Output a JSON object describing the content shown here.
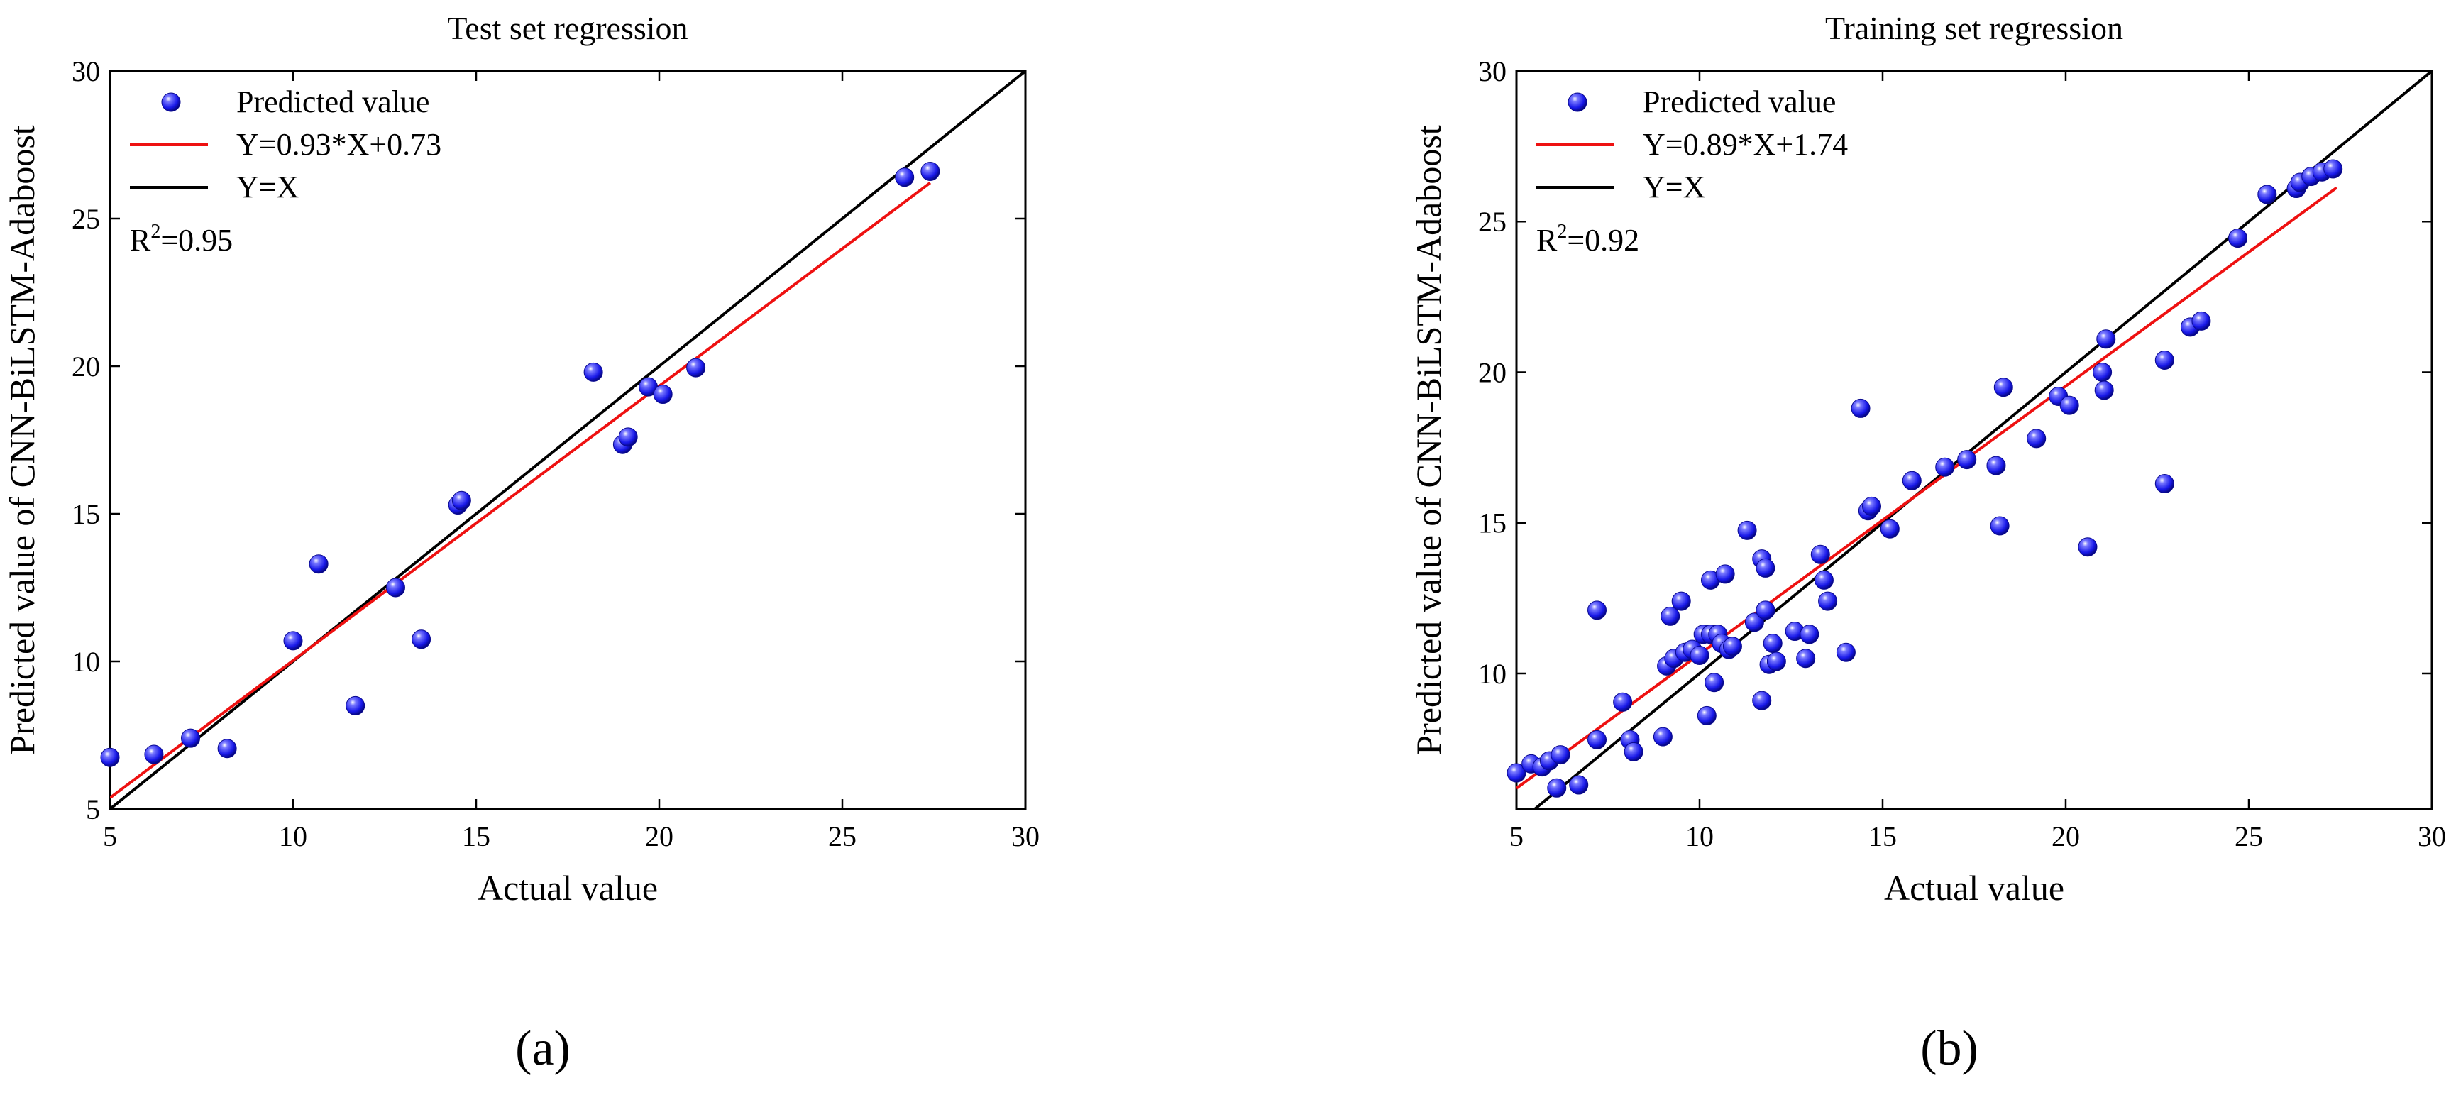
{
  "chart_data": [
    {
      "type": "scatter",
      "panel_label": "(a)",
      "title": "Test set regression",
      "xlabel": "Actual value",
      "ylabel": "Predicted value of CNN-BiLSTM-Adaboost",
      "xlim": [
        5,
        30
      ],
      "ylim": [
        5,
        30
      ],
      "xticks": [
        5,
        10,
        15,
        20,
        25,
        30
      ],
      "yticks": [
        5,
        10,
        15,
        20,
        25,
        30
      ],
      "grid": false,
      "legend_position": "top-left",
      "legend": {
        "points": "Predicted value",
        "fit": "Y=0.93*X+0.73",
        "identity": "Y=X"
      },
      "r2": {
        "prefix": "R",
        "sup": "2",
        "value": "=0.95"
      },
      "fit_line": {
        "slope": 0.93,
        "intercept": 0.73,
        "x_range": [
          5,
          27.4
        ]
      },
      "identity_line": {
        "x_range": [
          5,
          30
        ]
      },
      "colors": {
        "points": "#1a1aee",
        "fit": "#ee1111",
        "identity": "#000000"
      },
      "points": [
        [
          5.0,
          6.75
        ],
        [
          6.2,
          6.85
        ],
        [
          7.2,
          7.4
        ],
        [
          8.2,
          7.05
        ],
        [
          10.0,
          10.7
        ],
        [
          10.7,
          13.3
        ],
        [
          11.7,
          8.5
        ],
        [
          12.8,
          12.5
        ],
        [
          13.5,
          10.75
        ],
        [
          14.5,
          15.3
        ],
        [
          14.6,
          15.45
        ],
        [
          18.2,
          19.8
        ],
        [
          19.0,
          17.35
        ],
        [
          19.15,
          17.6
        ],
        [
          19.7,
          19.3
        ],
        [
          20.1,
          19.05
        ],
        [
          21.0,
          19.95
        ],
        [
          26.7,
          26.4
        ],
        [
          27.4,
          26.6
        ]
      ]
    },
    {
      "type": "scatter",
      "panel_label": "(b)",
      "title": "Training set regression",
      "xlabel": "Actual value",
      "ylabel": "Predicted value of CNN-BiLSTM-Adaboost",
      "xlim": [
        5,
        30
      ],
      "ylim": [
        5.5,
        30
      ],
      "xticks": [
        5,
        10,
        15,
        20,
        25,
        30
      ],
      "yticks": [
        10,
        15,
        20,
        25,
        30
      ],
      "grid": false,
      "legend_position": "top-left",
      "legend": {
        "points": "Predicted value",
        "fit": "Y=0.89*X+1.74",
        "identity": "Y=X"
      },
      "r2": {
        "prefix": "R",
        "sup": "2",
        "value": "=0.92"
      },
      "fit_line": {
        "slope": 0.89,
        "intercept": 1.74,
        "x_range": [
          5,
          27.4
        ]
      },
      "identity_line": {
        "x_range": [
          5.5,
          30
        ]
      },
      "colors": {
        "points": "#1a1aee",
        "fit": "#ee1111",
        "identity": "#000000"
      },
      "points": [
        [
          5.0,
          6.7
        ],
        [
          5.4,
          7.0
        ],
        [
          5.7,
          6.9
        ],
        [
          5.9,
          7.1
        ],
        [
          6.2,
          7.3
        ],
        [
          6.1,
          6.2
        ],
        [
          6.7,
          6.3
        ],
        [
          7.2,
          12.1
        ],
        [
          7.2,
          7.8
        ],
        [
          7.9,
          9.05
        ],
        [
          8.1,
          7.8
        ],
        [
          8.2,
          7.4
        ],
        [
          9.0,
          7.9
        ],
        [
          9.1,
          10.25
        ],
        [
          9.2,
          11.9
        ],
        [
          9.3,
          10.5
        ],
        [
          9.5,
          12.4
        ],
        [
          9.6,
          10.7
        ],
        [
          9.8,
          10.8
        ],
        [
          10.0,
          10.6
        ],
        [
          10.1,
          11.3
        ],
        [
          10.3,
          11.3
        ],
        [
          10.3,
          13.1
        ],
        [
          10.2,
          8.6
        ],
        [
          10.4,
          9.7
        ],
        [
          10.5,
          11.3
        ],
        [
          10.6,
          11.0
        ],
        [
          10.7,
          13.3
        ],
        [
          10.8,
          10.8
        ],
        [
          10.9,
          10.9
        ],
        [
          11.3,
          14.75
        ],
        [
          11.5,
          11.7
        ],
        [
          11.7,
          13.8
        ],
        [
          11.8,
          13.5
        ],
        [
          11.7,
          9.1
        ],
        [
          11.8,
          12.1
        ],
        [
          11.9,
          10.3
        ],
        [
          12.0,
          11.0
        ],
        [
          12.1,
          10.4
        ],
        [
          12.6,
          11.4
        ],
        [
          12.9,
          10.5
        ],
        [
          13.0,
          11.3
        ],
        [
          13.3,
          13.95
        ],
        [
          13.4,
          13.1
        ],
        [
          13.5,
          12.4
        ],
        [
          14.0,
          10.7
        ],
        [
          14.4,
          18.8
        ],
        [
          14.6,
          15.4
        ],
        [
          14.7,
          15.55
        ],
        [
          15.2,
          14.8
        ],
        [
          15.8,
          16.4
        ],
        [
          16.7,
          16.85
        ],
        [
          17.3,
          17.1
        ],
        [
          18.1,
          16.9
        ],
        [
          18.2,
          14.9
        ],
        [
          18.3,
          19.5
        ],
        [
          19.2,
          17.8
        ],
        [
          19.8,
          19.2
        ],
        [
          20.1,
          18.9
        ],
        [
          20.6,
          14.2
        ],
        [
          21.0,
          20.0
        ],
        [
          21.05,
          19.4
        ],
        [
          21.1,
          21.1
        ],
        [
          22.7,
          20.4
        ],
        [
          22.7,
          16.3
        ],
        [
          23.4,
          21.5
        ],
        [
          23.7,
          21.7
        ],
        [
          24.7,
          24.45
        ],
        [
          25.5,
          25.9
        ],
        [
          26.3,
          26.1
        ],
        [
          26.4,
          26.3
        ],
        [
          26.7,
          26.5
        ],
        [
          27.0,
          26.65
        ],
        [
          27.3,
          26.75
        ]
      ]
    }
  ]
}
